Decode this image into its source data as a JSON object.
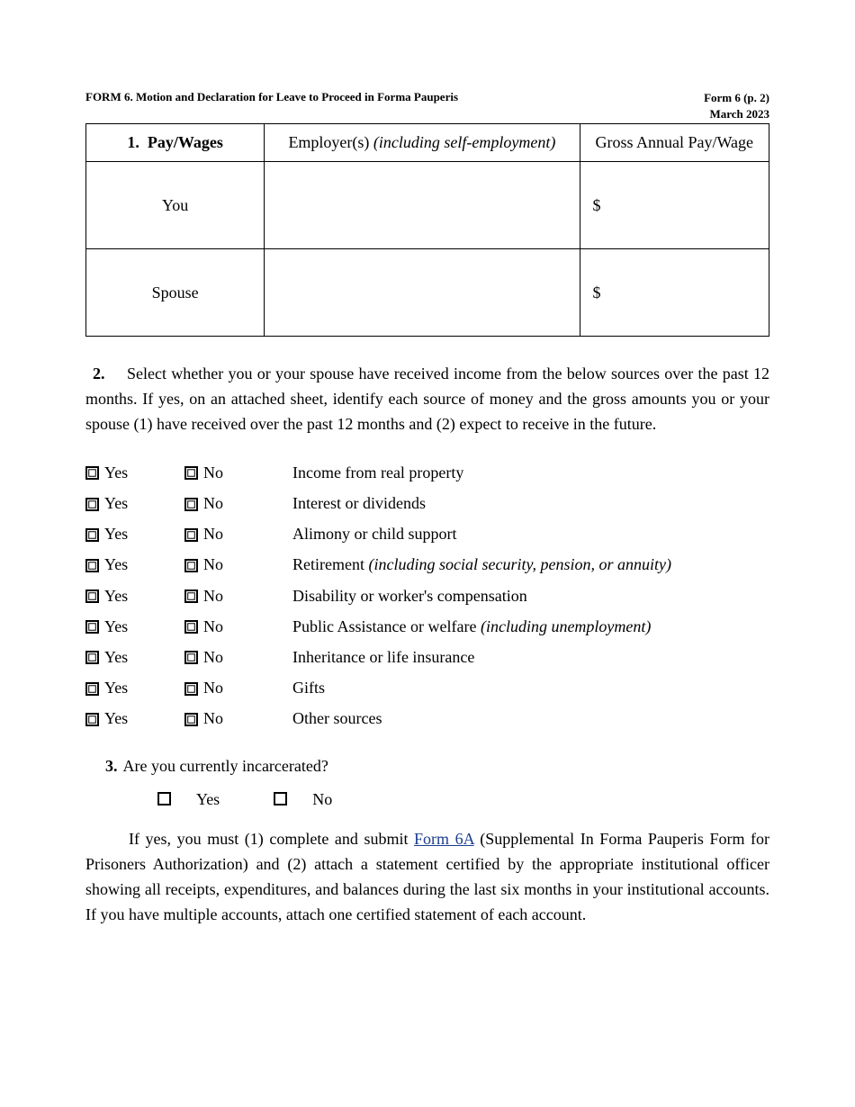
{
  "header": {
    "title_left": "FORM 6. Motion and Declaration for Leave to Proceed in Forma Pauperis",
    "title_right_line1": "Form 6 (p. 2)",
    "title_right_line2": "March 2023"
  },
  "table": {
    "col1_header_num": "1.",
    "col1_header_label": "Pay/Wages",
    "col2_header_prefix": "Employer(s) ",
    "col2_header_italic": "(including self-employment)",
    "col3_header": "Gross Annual Pay/Wage",
    "rows": [
      {
        "label": "You",
        "employer": "",
        "amount_prefix": "$",
        "amount": ""
      },
      {
        "label": "Spouse",
        "employer": "",
        "amount_prefix": "$",
        "amount": ""
      }
    ]
  },
  "section2": {
    "number": "2.",
    "text": "Select whether you or your spouse have received income from the below sources over the past 12 months.  If yes, on an attached sheet, identify each source of money and the gross amounts you or your spouse (1) have received over the past 12 months and (2) expect to receive in the future."
  },
  "labels": {
    "yes": "Yes",
    "no": "No"
  },
  "income_items": [
    {
      "desc": "Income from real property",
      "italic": ""
    },
    {
      "desc": "Interest or dividends",
      "italic": ""
    },
    {
      "desc": "Alimony or child support",
      "italic": ""
    },
    {
      "desc": "Retirement ",
      "italic": "(including social security, pension, or annuity)"
    },
    {
      "desc": "Disability or worker's compensation",
      "italic": ""
    },
    {
      "desc": "Public Assistance or welfare ",
      "italic": "(including unemployment)"
    },
    {
      "desc": "Inheritance or life insurance",
      "italic": ""
    },
    {
      "desc": "Gifts",
      "italic": ""
    },
    {
      "desc": "Other sources",
      "italic": ""
    }
  ],
  "q3": {
    "number": "3.",
    "question": "Are you currently incarcerated?",
    "yes": "Yes",
    "no": "No",
    "note_prefix": "If yes, you must (1) complete and submit ",
    "link_text": "Form 6A",
    "note_suffix": " (Supplemental In Forma Pauperis Form for Prisoners Authorization) and (2) attach a statement certified by the appropriate institutional officer showing all receipts, expenditures, and balances during the last six months in your institutional accounts.  If you have multiple accounts, attach one certified statement of each account."
  }
}
